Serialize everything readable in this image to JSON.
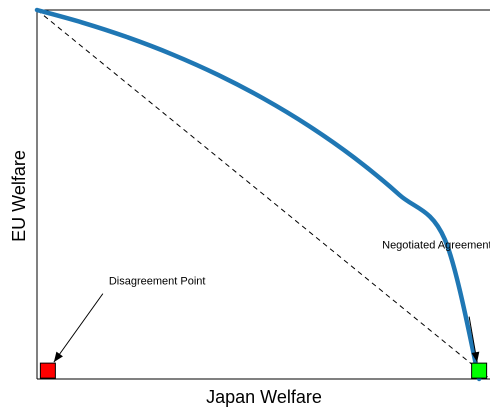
{
  "chart_data": {
    "type": "line",
    "title": "",
    "xlabel": "Japan Welfare",
    "ylabel": "EU Welfare",
    "xlim": [
      0,
      1
    ],
    "ylim": [
      0,
      1
    ],
    "grid": false,
    "series": [
      {
        "role": "frontier",
        "color": "#1f77b4",
        "x": [
          0,
          0.1,
          0.2,
          0.3,
          0.4,
          0.5,
          0.6,
          0.7,
          0.8,
          0.9,
          0.976
        ],
        "y": [
          1,
          0.966,
          0.926,
          0.879,
          0.824,
          0.76,
          0.686,
          0.6,
          0.499,
          0.379,
          0.0
        ]
      },
      {
        "role": "reference-line",
        "style": "dashed",
        "color": "#000000",
        "x": [
          0,
          1
        ],
        "y": [
          1,
          0
        ]
      }
    ],
    "points": [
      {
        "label": "Disagreement Point",
        "x": 0.024,
        "y": 0.02,
        "color": "#ff0000"
      },
      {
        "label": "Negotiated Agreement",
        "x": 0.976,
        "y": 0.02,
        "color": "#00ff00"
      }
    ]
  }
}
